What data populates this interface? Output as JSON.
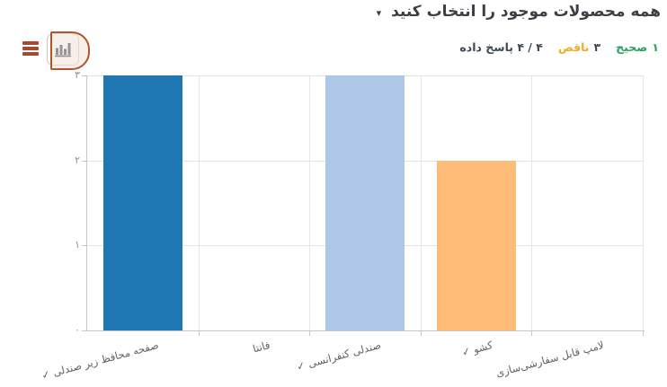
{
  "header": {
    "title": "همه محصولات موجود را انتخاب کنید",
    "caret_icon": "▾",
    "stats": {
      "correct_value": "۱",
      "correct_label": "صحیح",
      "partial_value": "۳",
      "partial_label": "ناقص",
      "answered_text": "۴ / ۴ پاسخ داده"
    }
  },
  "toolbar": {
    "menu_icon": "hamburger-icon",
    "chart_type_icon": "bar-chart-icon"
  },
  "colors": {
    "correct_green": "#28a35e",
    "partial_amber": "#efae22",
    "dark_text": "#3d4852",
    "menu_icon": "#a8492e",
    "click_indicator_border": "#b0552e",
    "bar_dark_blue": "#1f77b4",
    "bar_light_blue": "#aec7e8",
    "bar_light_orange": "#ffbb78",
    "gridline": "#e4e4e4",
    "axis_line": "#c6c6c6"
  },
  "chart_data": {
    "type": "bar",
    "title": "",
    "xlabel": "",
    "ylabel": "",
    "categories": [
      "صفحه محافظ زیر صندلی ✓",
      "فانتا",
      "صندلی کنفرانسی ✓",
      "کشو ✓",
      "لامپ قابل سفارشی‌سازی"
    ],
    "values": [
      3,
      0,
      3,
      2,
      0
    ],
    "bar_colors": [
      "#1f77b4",
      null,
      "#aec7e8",
      "#ffbb78",
      null
    ],
    "y_tick_labels": [
      "۰",
      "۱",
      "۲",
      "۳"
    ],
    "y_tick_values": [
      0,
      1,
      2,
      3
    ],
    "ylim": [
      0,
      3
    ],
    "grid": true,
    "legend": "none",
    "rtl": true,
    "x_tick_rotation_deg": -15
  }
}
